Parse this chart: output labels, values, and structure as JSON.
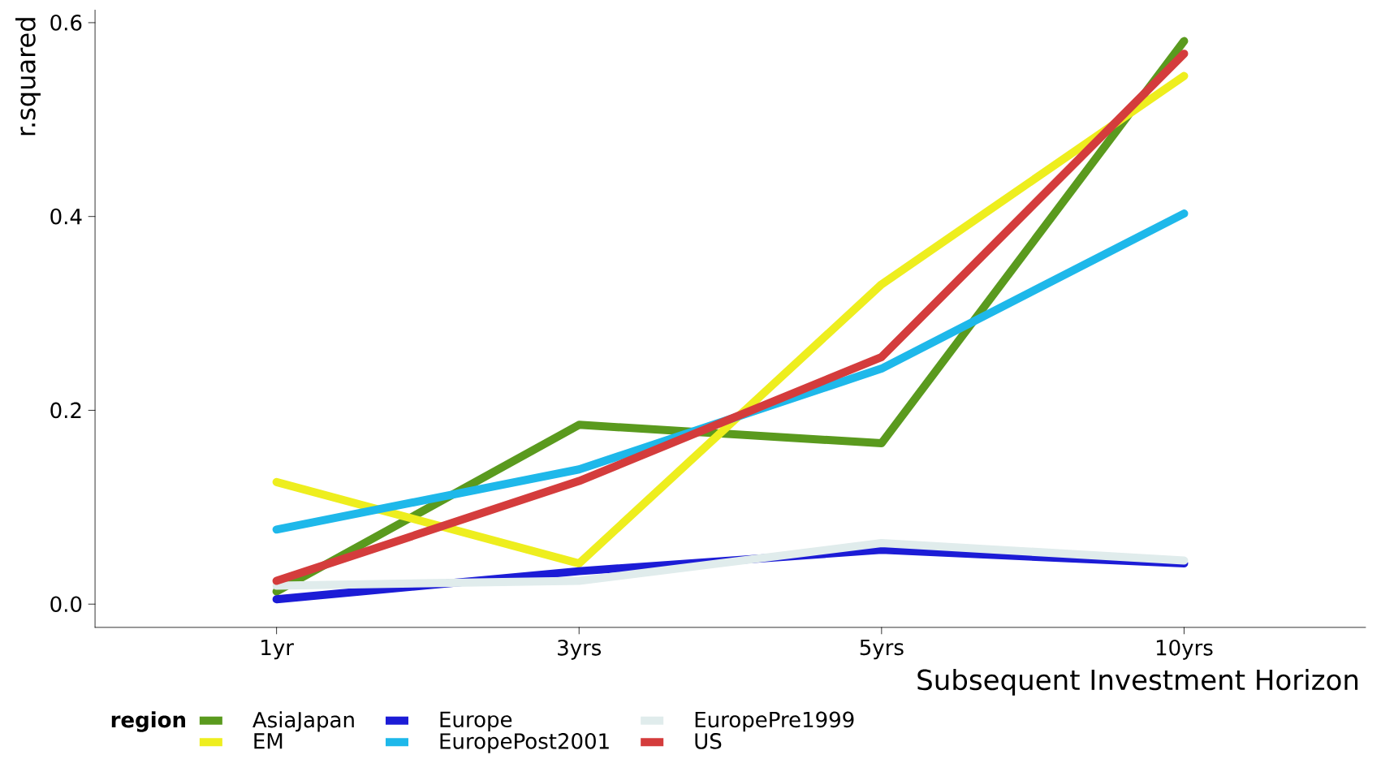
{
  "chart_data": {
    "type": "line",
    "xlabel": "Subsequent Investment Horizon",
    "ylabel": "r.squared",
    "legend_title": "region",
    "categories": [
      "1yr",
      "3yrs",
      "5yrs",
      "10yrs"
    ],
    "series": [
      {
        "name": "AsiaJapan",
        "color": "#5a9a1e",
        "values": [
          0.013,
          0.185,
          0.166,
          0.581
        ]
      },
      {
        "name": "EM",
        "color": "#eeee1e",
        "values": [
          0.126,
          0.042,
          0.33,
          0.545
        ]
      },
      {
        "name": "Europe",
        "color": "#1c1cd6",
        "values": [
          0.005,
          0.034,
          0.056,
          0.042
        ]
      },
      {
        "name": "EuropePost2001",
        "color": "#1eb8ea",
        "values": [
          0.077,
          0.139,
          0.243,
          0.403
        ]
      },
      {
        "name": "EuropePre1999",
        "color": "#e0ecec",
        "values": [
          0.019,
          0.024,
          0.063,
          0.045
        ]
      },
      {
        "name": "US",
        "color": "#d43c3c",
        "values": [
          0.024,
          0.127,
          0.255,
          0.568
        ]
      }
    ],
    "ylim": [
      -0.024,
      0.613
    ],
    "yticks": [
      {
        "value": 0,
        "label": "0.0"
      },
      {
        "value": 0.2,
        "label": "0.2"
      },
      {
        "value": 0.4,
        "label": "0.4"
      },
      {
        "value": 0.6,
        "label": "0.6"
      }
    ],
    "legend": "bottom",
    "grid": false,
    "marker": "none",
    "line_style": "solid"
  }
}
